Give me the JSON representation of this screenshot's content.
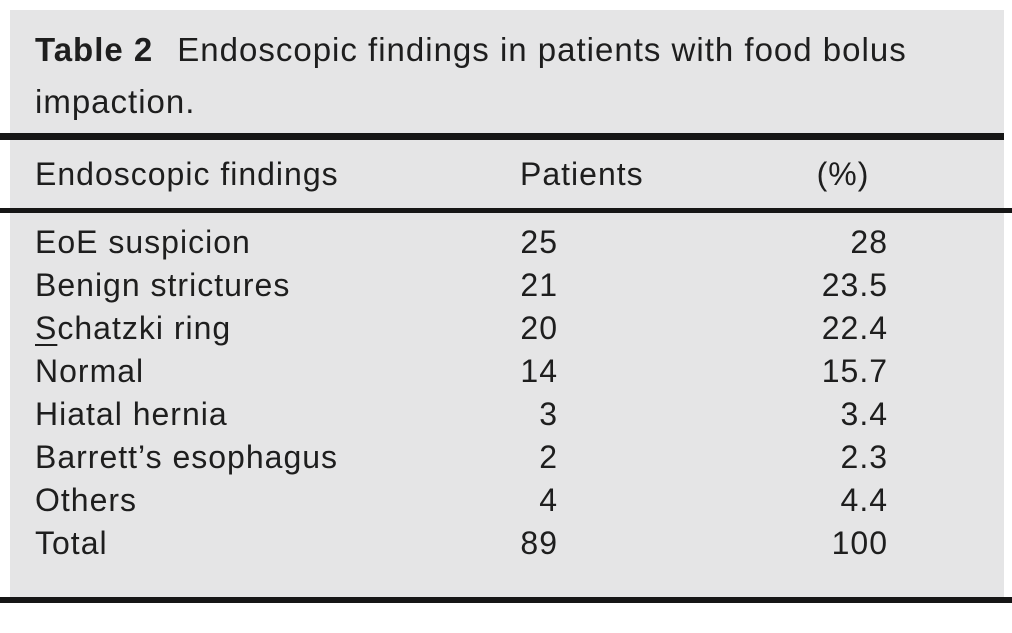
{
  "table": {
    "caption": {
      "label": "Table 2",
      "text": "Endoscopic findings in patients with food bolus impaction."
    },
    "columns": [
      "Endoscopic findings",
      "Patients",
      "(%)"
    ],
    "rows": [
      {
        "label": "EoE suspicion",
        "patients": "25",
        "percent": "28"
      },
      {
        "label": "Benign strictures",
        "patients": "21",
        "percent": "23.5"
      },
      {
        "label_parts": [
          "S",
          "chatzki ring"
        ],
        "patients": "20",
        "percent": "22.4"
      },
      {
        "label": "Normal",
        "patients": "14",
        "percent": "15.7"
      },
      {
        "label": "Hiatal hernia",
        "patients": "3",
        "percent": "3.4"
      },
      {
        "label": "Barrett’s esophagus",
        "patients": "2",
        "percent": "2.3"
      },
      {
        "label": "Others",
        "patients": "4",
        "percent": "4.4"
      },
      {
        "label": "Total",
        "patients": "89",
        "percent": "100"
      }
    ],
    "colors": {
      "page_bg": "#ffffff",
      "panel_bg": "#e5e5e6",
      "text": "#1e1e1e",
      "rule": "#161616"
    }
  }
}
